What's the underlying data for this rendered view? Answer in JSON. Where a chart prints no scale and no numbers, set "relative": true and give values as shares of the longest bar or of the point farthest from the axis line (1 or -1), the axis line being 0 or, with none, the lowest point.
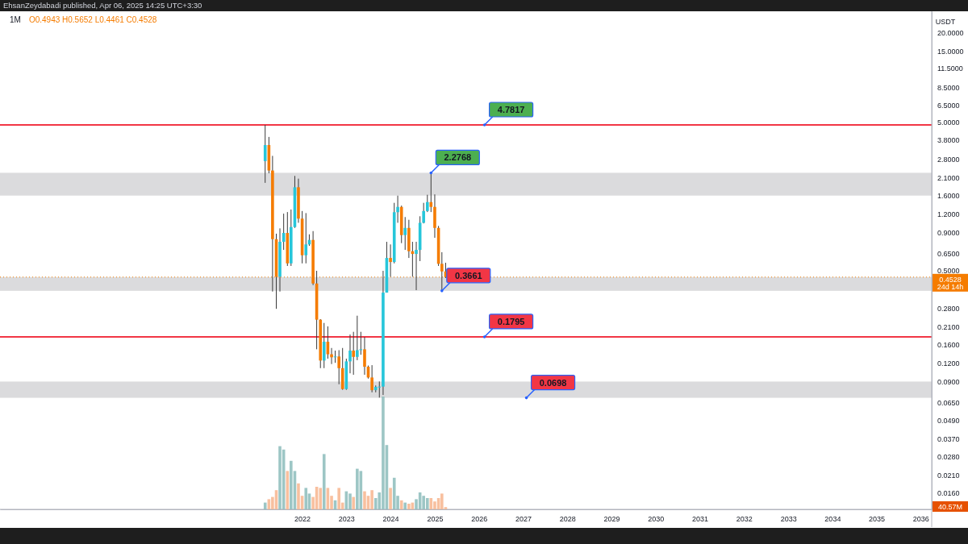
{
  "chart_data": [
    {
      "type": "candlestick",
      "title": "EhsanZeydabadi published, Apr 06, 2025 14:25 UTC+3:30",
      "subtitle": "1M",
      "ylabel": "USDT",
      "log": true,
      "x": [
        "2021-03",
        "2021-04",
        "2021-05",
        "2021-06",
        "2021-07",
        "2021-08",
        "2021-09",
        "2021-10",
        "2021-11",
        "2021-12",
        "2022-01",
        "2022-02",
        "2022-03",
        "2022-04",
        "2022-05",
        "2022-06",
        "2022-07",
        "2022-08",
        "2022-09",
        "2022-10",
        "2022-11",
        "2022-12",
        "2023-01",
        "2023-02",
        "2023-03",
        "2023-04",
        "2023-05",
        "2023-06",
        "2023-07",
        "2023-08",
        "2023-09",
        "2023-10",
        "2023-11",
        "2023-12",
        "2024-01",
        "2024-02",
        "2024-03",
        "2024-04",
        "2024-05",
        "2024-06",
        "2024-07",
        "2024-08",
        "2024-09",
        "2024-10",
        "2024-11",
        "2024-12",
        "2025-01",
        "2025-02",
        "2025-03",
        "2025-04"
      ],
      "ohlc": [
        [
          2.73,
          4.7817,
          1.95,
          3.5
        ],
        [
          3.5,
          3.97,
          2.26,
          2.36
        ],
        [
          2.36,
          2.96,
          0.362,
          0.815
        ],
        [
          0.815,
          0.887,
          0.277,
          0.455
        ],
        [
          0.455,
          0.963,
          0.362,
          0.782
        ],
        [
          0.782,
          1.21,
          0.69,
          0.897
        ],
        [
          0.897,
          1.24,
          0.538,
          0.56
        ],
        [
          0.56,
          1.29,
          0.538,
          0.983
        ],
        [
          0.983,
          2.17,
          0.97,
          1.82
        ],
        [
          1.82,
          2.08,
          1.05,
          1.12
        ],
        [
          1.12,
          1.26,
          0.56,
          0.635
        ],
        [
          0.635,
          1.22,
          0.56,
          0.751
        ],
        [
          0.751,
          0.878,
          0.735,
          0.805
        ],
        [
          0.805,
          0.923,
          0.4,
          0.41
        ],
        [
          0.41,
          0.499,
          0.148,
          0.234
        ],
        [
          0.234,
          0.236,
          0.1105,
          0.1243
        ],
        [
          0.1243,
          0.2225,
          0.1105,
          0.1663
        ],
        [
          0.1663,
          0.211,
          0.128,
          0.137
        ],
        [
          0.137,
          0.151,
          0.1177,
          0.1307
        ],
        [
          0.1307,
          0.145,
          0.12,
          0.1324
        ],
        [
          0.1324,
          0.146,
          0.0861,
          0.1105
        ],
        [
          0.1105,
          0.151,
          0.079,
          0.0799
        ],
        [
          0.0799,
          0.128,
          0.079,
          0.1227
        ],
        [
          0.1227,
          0.186,
          0.102,
          0.145
        ],
        [
          0.145,
          0.194,
          0.0997,
          0.1316
        ],
        [
          0.1316,
          0.249,
          0.125,
          0.146
        ],
        [
          0.146,
          0.194,
          0.136,
          0.148
        ],
        [
          0.148,
          0.179,
          0.0997,
          0.1129
        ],
        [
          0.1129,
          0.115,
          0.094,
          0.0956
        ],
        [
          0.0956,
          0.1157,
          0.076,
          0.0786
        ],
        [
          0.0786,
          0.0845,
          0.076,
          0.0826
        ],
        [
          0.0826,
          0.0899,
          0.07,
          0.083
        ],
        [
          0.083,
          0.499,
          0.0729,
          0.356
        ],
        [
          0.356,
          0.782,
          0.356,
          0.609
        ],
        [
          0.609,
          0.751,
          0.455,
          0.572
        ],
        [
          0.572,
          1.43,
          0.56,
          1.237
        ],
        [
          1.237,
          1.599,
          1.05,
          1.343
        ],
        [
          1.343,
          1.37,
          0.766,
          0.868
        ],
        [
          0.868,
          1.148,
          0.69,
          0.97
        ],
        [
          0.97,
          1.1,
          0.609,
          0.676
        ],
        [
          0.676,
          0.782,
          0.455,
          0.648
        ],
        [
          0.648,
          0.782,
          0.37,
          0.69
        ],
        [
          0.69,
          1.162,
          0.58,
          1.05
        ],
        [
          1.05,
          1.43,
          1.04,
          1.26
        ],
        [
          1.26,
          1.62,
          1.24,
          1.447
        ],
        [
          1.447,
          2.2768,
          1.24,
          1.343
        ],
        [
          1.343,
          1.63,
          0.832,
          0.97
        ],
        [
          0.97,
          1.0,
          0.538,
          0.556
        ],
        [
          0.556,
          0.666,
          0.3661,
          0.4943
        ],
        [
          0.4943,
          0.5652,
          0.4461,
          0.4528
        ]
      ],
      "colors": [
        "#26c6da",
        "#f57c00",
        "#f57c00",
        "#f57c00",
        "#26c6da",
        "#26c6da",
        "#f57c00",
        "#26c6da",
        "#26c6da",
        "#f57c00",
        "#f57c00",
        "#26c6da",
        "#26c6da",
        "#f57c00",
        "#f57c00",
        "#f57c00",
        "#26c6da",
        "#f57c00",
        "#f57c00",
        "#26c6da",
        "#f57c00",
        "#f57c00",
        "#26c6da",
        "#26c6da",
        "#f57c00",
        "#26c6da",
        "#26c6da",
        "#f57c00",
        "#f57c00",
        "#f57c00",
        "#26c6da",
        "#26c6da",
        "#26c6da",
        "#26c6da",
        "#f57c00",
        "#26c6da",
        "#26c6da",
        "#f57c00",
        "#26c6da",
        "#f57c00",
        "#f57c00",
        "#26c6da",
        "#26c6da",
        "#26c6da",
        "#26c6da",
        "#f57c00",
        "#f57c00",
        "#f57c00",
        "#f57c00",
        "#f57c00"
      ],
      "xlim": [
        "2015-03",
        "2036-04"
      ],
      "xticks": [
        {
          "value": "2022",
          "label": "2022"
        },
        {
          "value": "2023",
          "label": "2023"
        },
        {
          "value": "2024",
          "label": "2024"
        },
        {
          "value": "2025",
          "label": "2025"
        },
        {
          "value": "2026",
          "label": "2026"
        },
        {
          "value": "2027",
          "label": "2027"
        },
        {
          "value": "2028",
          "label": "2028"
        },
        {
          "value": "2029",
          "label": "2029"
        },
        {
          "value": "2030",
          "label": "2030"
        },
        {
          "value": "2031",
          "label": "2031"
        },
        {
          "value": "2032",
          "label": "2032"
        },
        {
          "value": "2033",
          "label": "2033"
        },
        {
          "value": "2034",
          "label": "2034"
        },
        {
          "value": "2035",
          "label": "2035"
        },
        {
          "value": "2036",
          "label": "2036"
        }
      ],
      "ylim": [
        0.0124,
        27.8
      ],
      "yticks": [
        {
          "value": 20,
          "label": "20.0000"
        },
        {
          "value": 15,
          "label": "15.0000"
        },
        {
          "value": 11.5,
          "label": "11.5000"
        },
        {
          "value": 8.5,
          "label": "8.5000"
        },
        {
          "value": 6.5,
          "label": "6.5000"
        },
        {
          "value": 5,
          "label": "5.0000"
        },
        {
          "value": 3.8,
          "label": "3.8000"
        },
        {
          "value": 2.8,
          "label": "2.8000"
        },
        {
          "value": 2.1,
          "label": "2.1000"
        },
        {
          "value": 1.6,
          "label": "1.6000"
        },
        {
          "value": 1.2,
          "label": "1.2000"
        },
        {
          "value": 0.9,
          "label": "0.9000"
        },
        {
          "value": 0.65,
          "label": "0.6500"
        },
        {
          "value": 0.5,
          "label": "0.5000"
        },
        {
          "value": 0.28,
          "label": "0.2800"
        },
        {
          "value": 0.21,
          "label": "0.2100"
        },
        {
          "value": 0.16,
          "label": "0.1600"
        },
        {
          "value": 0.12,
          "label": "0.1200"
        },
        {
          "value": 0.09,
          "label": "0.0900"
        },
        {
          "value": 0.065,
          "label": "0.0650"
        },
        {
          "value": 0.049,
          "label": "0.0490"
        },
        {
          "value": 0.037,
          "label": "0.0370"
        },
        {
          "value": 0.028,
          "label": "0.0280"
        },
        {
          "value": 0.021,
          "label": "0.0210"
        },
        {
          "value": 0.016,
          "label": "0.0160"
        }
      ],
      "ref_lines": [
        {
          "axis": "y",
          "value": 4.7817,
          "label": "4.7817",
          "color": "#f23645",
          "line_style": "solid"
        },
        {
          "axis": "y",
          "value": 0.1795,
          "label": "0.1795",
          "color": "#f23645",
          "line_style": "solid"
        },
        {
          "axis": "y",
          "value": 0.4528,
          "label": "0.4528",
          "color": "#f57c00",
          "line_style": "dotted"
        }
      ],
      "bands": [
        {
          "axis": "y",
          "from": 1.6,
          "to": 2.2768,
          "color": "#d9d9db"
        },
        {
          "axis": "y",
          "from": 0.3661,
          "to": 0.453,
          "color": "#d9d9db"
        },
        {
          "axis": "y",
          "from": 0.0698,
          "to": 0.0898,
          "label": "0.0698",
          "color": "#d9d9db"
        }
      ],
      "annotations": [
        {
          "text": "2.2768",
          "x": "2024-12",
          "y": 2.2768
        },
        {
          "text": "0.3661",
          "x": "2025-03",
          "y": 0.3661
        },
        "O0.4943 H0.5652 L0.4461 C0.4528",
        "24d 14h",
        "40.57M"
      ]
    },
    {
      "type": "bar",
      "relative": true,
      "categories": [
        null,
        null,
        null,
        null,
        null,
        null,
        null,
        null,
        null,
        null,
        null,
        null,
        null,
        null,
        null,
        null,
        null,
        null,
        null,
        null,
        null,
        null,
        null,
        null,
        null,
        null,
        null,
        null,
        null,
        null,
        null,
        null,
        null,
        null,
        null,
        null,
        null,
        null,
        null,
        null,
        null,
        null,
        null,
        null,
        null,
        null,
        null,
        null,
        null,
        null
      ],
      "values": [
        0.06,
        0.09,
        0.11,
        0.17,
        0.56,
        0.53,
        0.34,
        0.43,
        0.34,
        0.23,
        0.12,
        0.19,
        0.14,
        0.11,
        0.2,
        0.19,
        0.49,
        0.19,
        0.12,
        0.08,
        0.19,
        0.06,
        0.16,
        0.14,
        0.11,
        0.36,
        0.34,
        0.16,
        0.12,
        0.17,
        0.1,
        0.15,
        1,
        0.57,
        0.19,
        0.28,
        0.12,
        0.08,
        0.06,
        0.05,
        0.06,
        0.09,
        0.15,
        0.12,
        0.1,
        0.1,
        0.07,
        0.1,
        0.14,
        0.02
      ],
      "colors": [
        "#92c0bf",
        "#f7b995",
        "#f7b995",
        "#f7b995",
        "#92c0bf",
        "#92c0bf",
        "#f7b995",
        "#92c0bf",
        "#92c0bf",
        "#f7b995",
        "#f7b995",
        "#92c0bf",
        "#92c0bf",
        "#f7b995",
        "#f7b995",
        "#f7b995",
        "#92c0bf",
        "#f7b995",
        "#f7b995",
        "#92c0bf",
        "#f7b995",
        "#f7b995",
        "#92c0bf",
        "#92c0bf",
        "#f7b995",
        "#92c0bf",
        "#92c0bf",
        "#f7b995",
        "#f7b995",
        "#f7b995",
        "#92c0bf",
        "#92c0bf",
        "#92c0bf",
        "#92c0bf",
        "#f7b995",
        "#92c0bf",
        "#92c0bf",
        "#f7b995",
        "#92c0bf",
        "#f7b995",
        "#f7b995",
        "#92c0bf",
        "#92c0bf",
        "#92c0bf",
        "#92c0bf",
        "#f7b995",
        "#f7b995",
        "#f7b995",
        "#f7b995",
        "#f7b995"
      ]
    }
  ]
}
